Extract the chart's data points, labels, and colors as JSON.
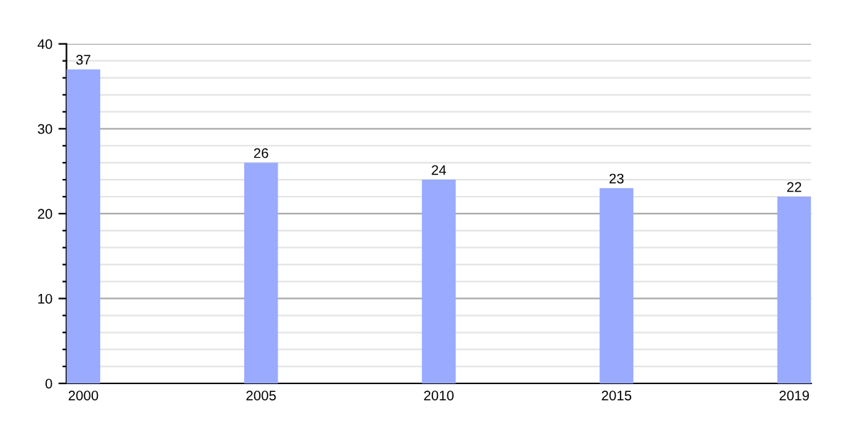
{
  "chart_data": {
    "type": "bar",
    "categories": [
      "2000",
      "2005",
      "2010",
      "2015",
      "2019"
    ],
    "series": [
      {
        "color": "#99aaff",
        "values": [
          37,
          26,
          24,
          23,
          22
        ]
      }
    ],
    "ylim": [
      0,
      40
    ],
    "yticks": [
      0,
      {
        "value": 2,
        "label": null
      },
      {
        "value": 4,
        "label": null
      },
      {
        "value": 6,
        "label": null
      },
      {
        "value": 8,
        "label": null
      },
      10,
      {
        "value": 12,
        "label": null
      },
      {
        "value": 14,
        "label": null
      },
      {
        "value": 16,
        "label": null
      },
      {
        "value": 18,
        "label": null
      },
      20,
      {
        "value": 22,
        "label": null
      },
      {
        "value": 24,
        "label": null
      },
      {
        "value": 26,
        "label": null
      },
      {
        "value": 28,
        "label": null
      },
      30,
      {
        "value": 32,
        "label": null
      },
      {
        "value": 34,
        "label": null
      },
      {
        "value": 36,
        "label": null
      },
      {
        "value": 38,
        "label": null
      },
      40
    ],
    "grid": "y",
    "data_labels": true
  }
}
